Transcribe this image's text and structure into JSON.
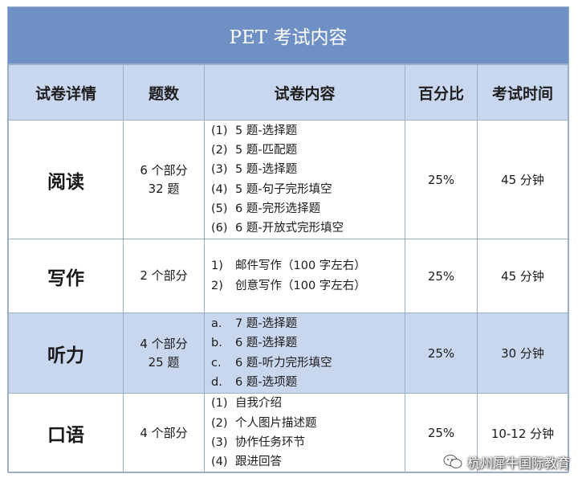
{
  "title": "PET 考试内容",
  "headers": [
    "试卷详情",
    "题数",
    "试卷内容",
    "百分比",
    "考试时间"
  ],
  "rows": [
    {
      "section": "阅读",
      "count_lines": [
        "6 个部分",
        "32 题"
      ],
      "items": [
        {
          "num": "(1)",
          "text": "5 题-选择题"
        },
        {
          "num": "(2)",
          "text": "5 题-匹配题"
        },
        {
          "num": "(3)",
          "text": "5 题-选择题"
        },
        {
          "num": "(4)",
          "text": "5 题-句子完形填空"
        },
        {
          "num": "(5)",
          "text": "6 题-完形选择题"
        },
        {
          "num": "(6)",
          "text": "6 题-开放式完形填空"
        }
      ],
      "percent": "25%",
      "time": "45 分钟"
    },
    {
      "section": "写作",
      "count_lines": [
        "2 个部分"
      ],
      "items": [
        {
          "num": "1)",
          "text": "邮件写作（100 字左右）"
        },
        {
          "num": "2)",
          "text": "创意写作（100 字左右）"
        }
      ],
      "percent": "25%",
      "time": "45 分钟"
    },
    {
      "section": "听力",
      "count_lines": [
        "4 个部分",
        "25 题"
      ],
      "items": [
        {
          "num": "a.",
          "text": "7 题-选择题"
        },
        {
          "num": "b.",
          "text": "6 题-选择题"
        },
        {
          "num": "c.",
          "text": "6 题-听力完形填空"
        },
        {
          "num": "d.",
          "text": "6 题-选项题"
        }
      ],
      "percent": "25%",
      "time": "30 分钟"
    },
    {
      "section": "口语",
      "count_lines": [
        "4 个部分"
      ],
      "items": [
        {
          "num": "(1)",
          "text": "自我介绍"
        },
        {
          "num": "(2)",
          "text": "个人图片描述题"
        },
        {
          "num": "(3)",
          "text": "协作任务环节"
        },
        {
          "num": "(4)",
          "text": "跟进回答"
        }
      ],
      "percent": "25%",
      "time": "10-12 分钟"
    }
  ],
  "watermark": "杭州犀牛国际教育",
  "colors": {
    "title_bg": "#6f90c4",
    "header_bg": "#c9d7ee",
    "border": "#9aaec6"
  }
}
